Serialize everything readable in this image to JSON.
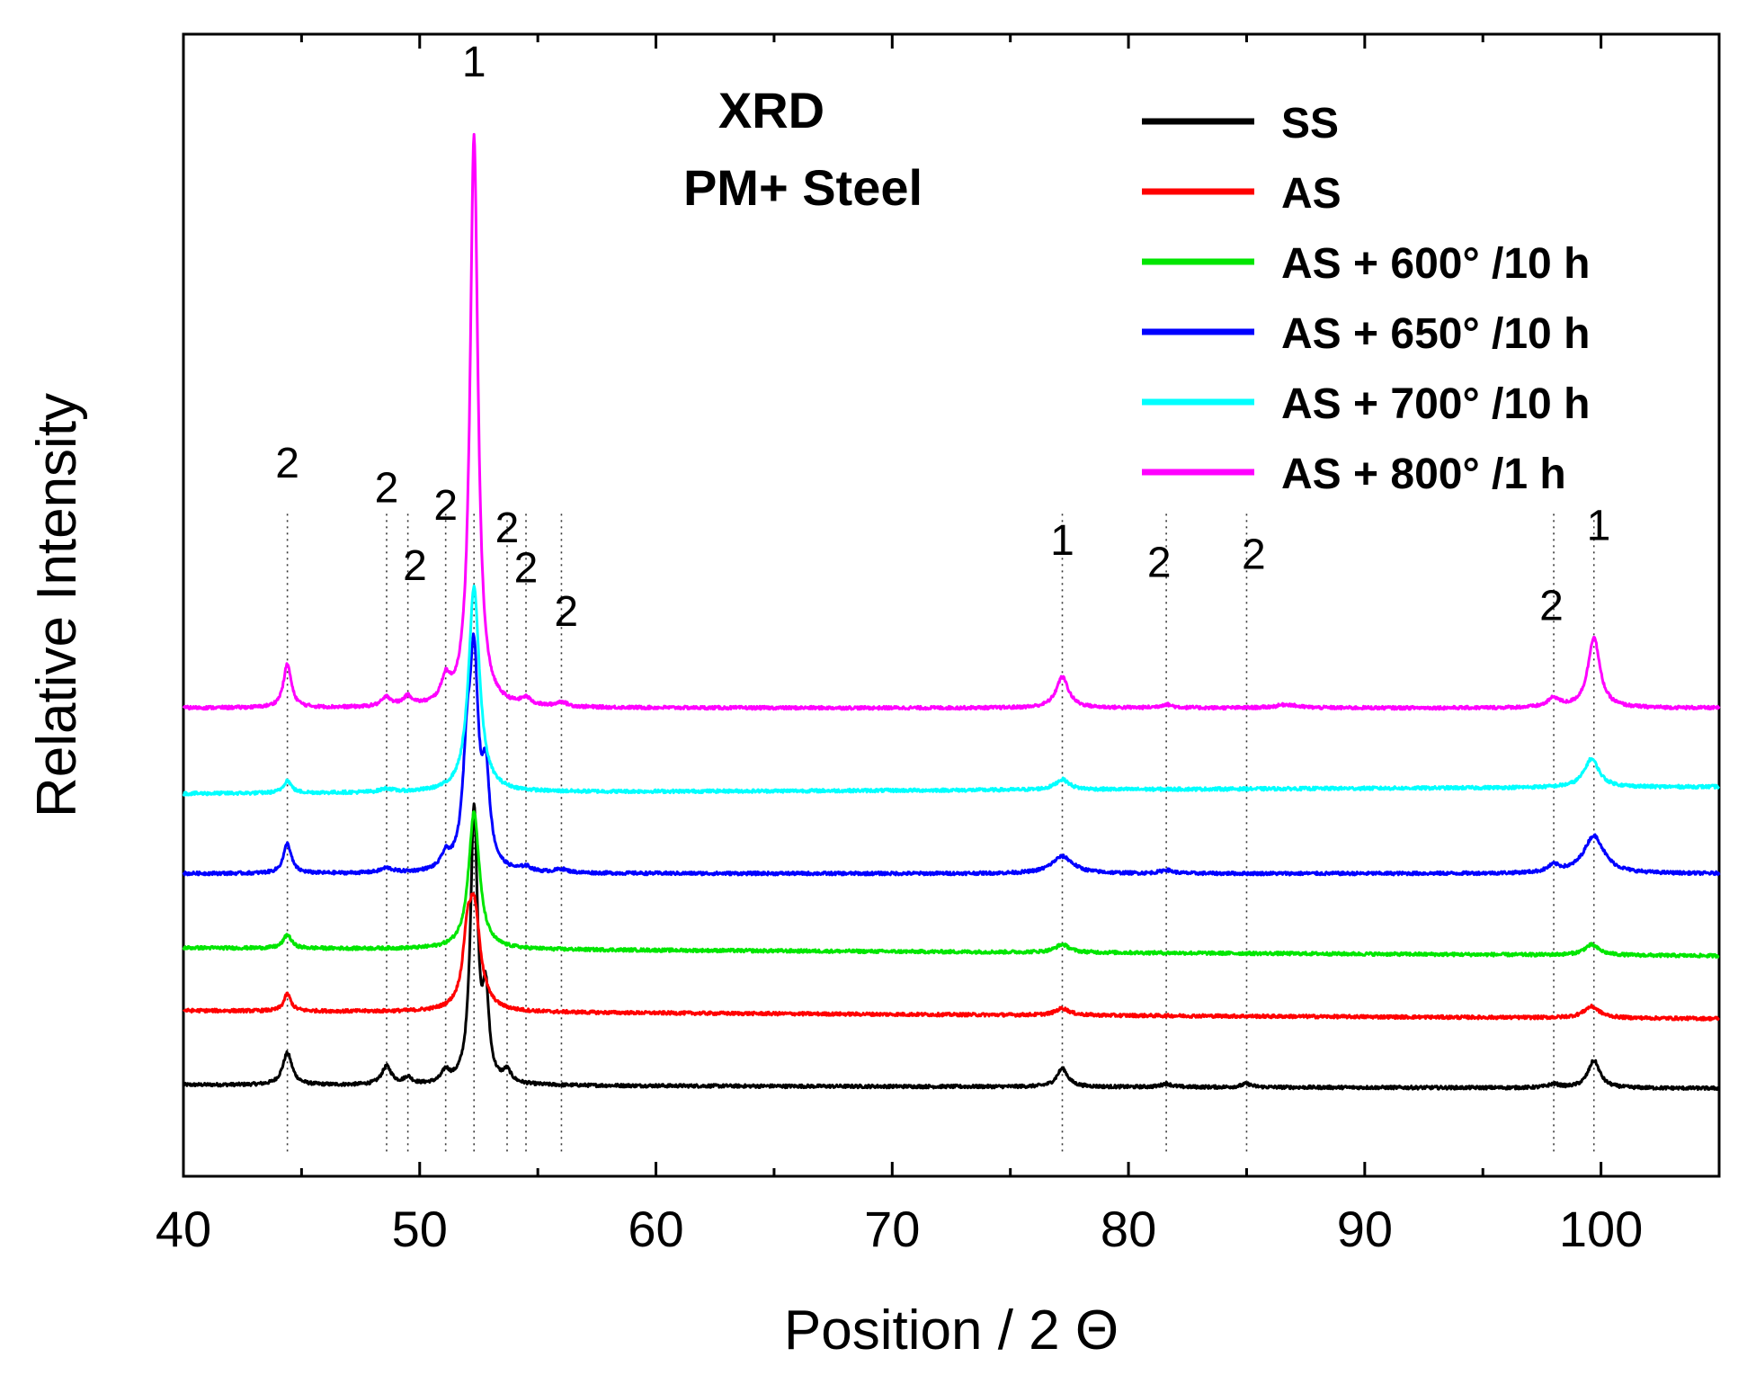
{
  "chart_data": {
    "type": "line",
    "title": "XRD",
    "subtitle": "PM+ Steel",
    "xlabel": "Position / 2 Θ",
    "ylabel": "Relative Intensity",
    "xlim": [
      40,
      105
    ],
    "ylim": [
      0,
      100
    ],
    "x_ticks": [
      40,
      50,
      60,
      70,
      80,
      90,
      100
    ],
    "x_tick_labels": [
      "40",
      "50",
      "60",
      "70",
      "80",
      "90",
      "100"
    ],
    "grid": false,
    "legend_position": "top-right",
    "y_units": "arbitrary (stacked offsets)",
    "peaks": [
      44.4,
      48.6,
      49.5,
      51.1,
      52.3,
      53.7,
      54.5,
      56.0,
      77.2,
      81.6,
      85.0,
      98.0,
      99.7
    ],
    "series": [
      {
        "name": "SS",
        "color": "#000000",
        "baseline": 8.0,
        "drift": -0.3,
        "peaks": [
          [
            44.4,
            2.8,
            0.24
          ],
          [
            48.6,
            1.6,
            0.25
          ],
          [
            49.5,
            0.6,
            0.2
          ],
          [
            51.1,
            1.0,
            0.2
          ],
          [
            52.3,
            24.0,
            0.18
          ],
          [
            52.8,
            7.0,
            0.16
          ],
          [
            53.7,
            1.0,
            0.2
          ],
          [
            77.2,
            1.6,
            0.28
          ],
          [
            81.6,
            0.3,
            0.25
          ],
          [
            85.0,
            0.3,
            0.25
          ],
          [
            98.0,
            0.3,
            0.3
          ],
          [
            99.7,
            2.4,
            0.3
          ]
        ]
      },
      {
        "name": "AS",
        "color": "#ff0000",
        "baseline": 14.5,
        "drift": -0.7,
        "peaks": [
          [
            44.4,
            1.5,
            0.18
          ],
          [
            52.0,
            4.0,
            0.2
          ],
          [
            52.3,
            9.0,
            0.32
          ],
          [
            77.2,
            0.6,
            0.35
          ],
          [
            99.6,
            1.0,
            0.4
          ]
        ]
      },
      {
        "name": "AS + 600° /10 h",
        "color": "#00e600",
        "baseline": 20.0,
        "drift": -0.7,
        "peaks": [
          [
            44.4,
            1.2,
            0.2
          ],
          [
            52.3,
            12.0,
            0.28
          ],
          [
            77.2,
            0.7,
            0.35
          ],
          [
            99.6,
            0.9,
            0.38
          ]
        ]
      },
      {
        "name": "AS + 650° /10 h",
        "color": "#0000ff",
        "baseline": 26.5,
        "drift": 0.0,
        "peaks": [
          [
            44.4,
            2.6,
            0.2
          ],
          [
            48.6,
            0.4,
            0.3
          ],
          [
            51.1,
            1.2,
            0.22
          ],
          [
            52.0,
            8.0,
            0.22
          ],
          [
            52.3,
            17.0,
            0.22
          ],
          [
            52.8,
            7.5,
            0.2
          ],
          [
            54.5,
            0.4,
            0.25
          ],
          [
            56.0,
            0.3,
            0.3
          ],
          [
            77.2,
            1.5,
            0.55
          ],
          [
            81.6,
            0.3,
            0.3
          ],
          [
            98.0,
            0.6,
            0.3
          ],
          [
            99.7,
            3.3,
            0.52
          ]
        ]
      },
      {
        "name": "AS + 700° /10 h",
        "color": "#00ffff",
        "baseline": 33.5,
        "drift": 0.6,
        "peaks": [
          [
            44.4,
            1.1,
            0.2
          ],
          [
            48.6,
            0.3,
            0.3
          ],
          [
            52.3,
            18.0,
            0.28
          ],
          [
            77.2,
            0.9,
            0.35
          ],
          [
            99.6,
            2.5,
            0.38
          ]
        ]
      },
      {
        "name": "AS + 800° /1 h",
        "color": "#ff00ff",
        "baseline": 41.0,
        "drift": 0.0,
        "peaks": [
          [
            44.4,
            3.8,
            0.2
          ],
          [
            48.6,
            0.8,
            0.25
          ],
          [
            49.5,
            0.8,
            0.25
          ],
          [
            51.1,
            2.0,
            0.22
          ],
          [
            52.3,
            50.0,
            0.2
          ],
          [
            54.5,
            0.6,
            0.25
          ],
          [
            56.0,
            0.4,
            0.28
          ],
          [
            77.2,
            2.7,
            0.32
          ],
          [
            81.6,
            0.3,
            0.3
          ],
          [
            86.7,
            0.3,
            0.5
          ],
          [
            98.0,
            0.8,
            0.3
          ],
          [
            99.7,
            6.2,
            0.3
          ]
        ]
      }
    ],
    "annotations": [
      {
        "text": "1",
        "x": 52.3,
        "y": 96.3
      },
      {
        "text": "2",
        "x": 44.4,
        "y": 61.2
      },
      {
        "text": "2",
        "x": 48.6,
        "y": 59.0
      },
      {
        "text": "2",
        "x": 51.1,
        "y": 57.5
      },
      {
        "text": "2",
        "x": 49.8,
        "y": 52.2
      },
      {
        "text": "2",
        "x": 53.7,
        "y": 55.5
      },
      {
        "text": "2",
        "x": 54.5,
        "y": 52.0
      },
      {
        "text": "2",
        "x": 56.2,
        "y": 48.2
      },
      {
        "text": "1",
        "x": 77.2,
        "y": 54.4
      },
      {
        "text": "2",
        "x": 81.3,
        "y": 52.5
      },
      {
        "text": "2",
        "x": 85.3,
        "y": 53.2
      },
      {
        "text": "2",
        "x": 97.9,
        "y": 48.7
      },
      {
        "text": "1",
        "x": 99.9,
        "y": 55.7
      }
    ]
  }
}
